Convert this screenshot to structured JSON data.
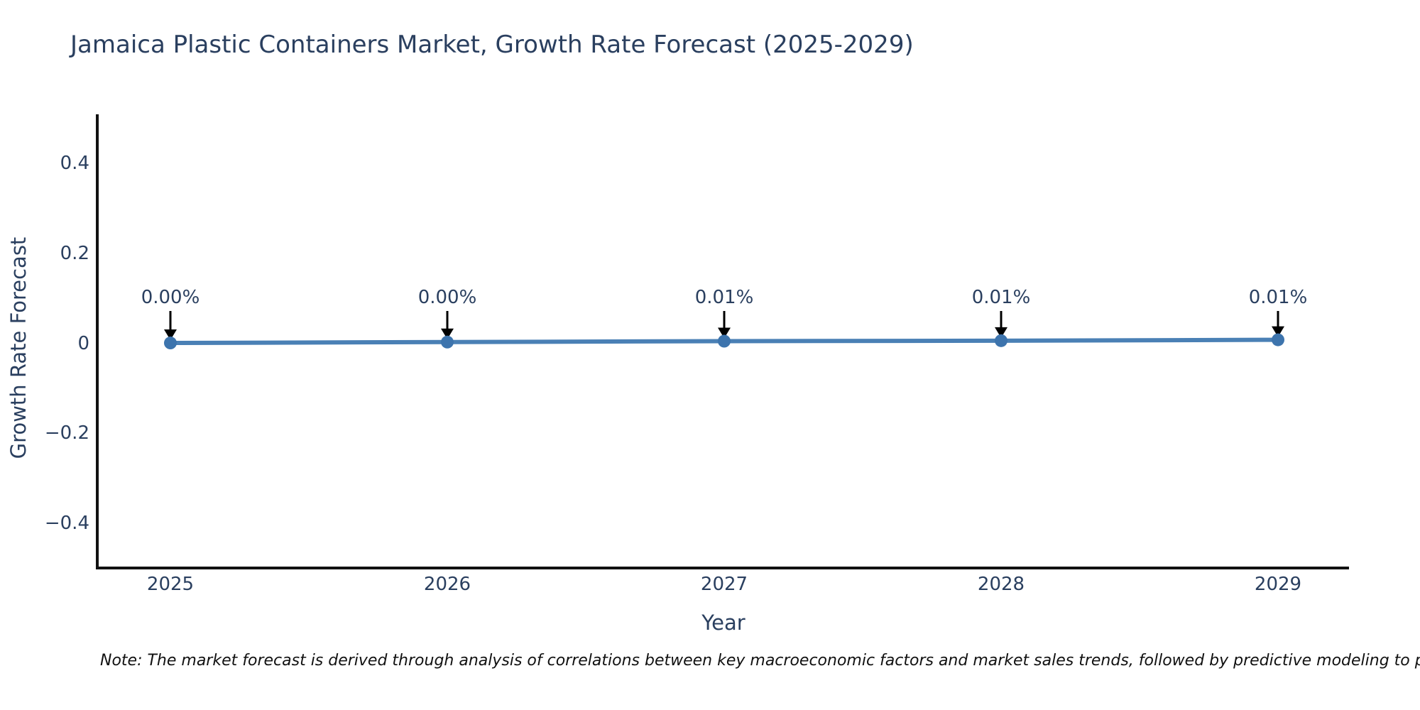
{
  "chart_data": {
    "type": "line",
    "title": "Jamaica Plastic Containers Market, Growth Rate Forecast (2025-2029)",
    "xlabel": "Year",
    "ylabel": "Growth Rate Forecast",
    "x": [
      "2025",
      "2026",
      "2027",
      "2028",
      "2029"
    ],
    "values": [
      0.001,
      0.003,
      0.005,
      0.006,
      0.008
    ],
    "point_labels": [
      "0.00%",
      "0.00%",
      "0.01%",
      "0.01%",
      "0.01%"
    ],
    "ytick_labels": [
      "0.4",
      "0.2",
      "0",
      "−0.2",
      "−0.4"
    ],
    "ytick_values": [
      0.4,
      0.2,
      0,
      -0.2,
      -0.4
    ],
    "ylim": [
      -0.5,
      0.51
    ],
    "grid": false,
    "legend": false
  },
  "colors": {
    "line": "#4a80b5",
    "marker": "#3d74ad",
    "arrow": "#000000",
    "text": "#2a3f5f",
    "axis": "#111111"
  },
  "note": {
    "text": "Note: The market forecast is derived through analysis of correlations between key macroeconomic factors and market sales trends, followed by predictive modeling to project future sa"
  }
}
